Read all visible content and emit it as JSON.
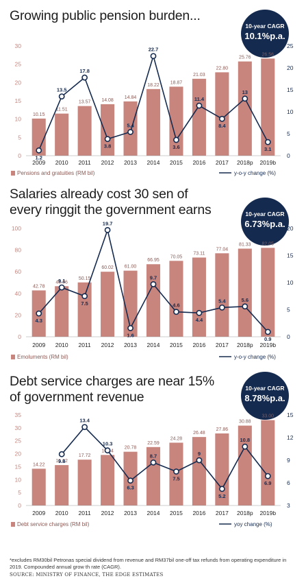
{
  "charts": [
    {
      "title_lines": [
        "Growing public pension burden..."
      ],
      "cagr_label": "10-year CAGR",
      "cagr_value": "10.1%p.a."
    },
    {
      "title_lines": [
        "Salaries already cost 30 sen of",
        "every ringgit the government earns"
      ],
      "cagr_label": "10-year CAGR",
      "cagr_value": "6.73%p.a."
    },
    {
      "title_lines": [
        "Debt service charges are near 15%",
        "of government revenue"
      ],
      "cagr_label": "10-year CAGR",
      "cagr_value": "8.78%p.a."
    }
  ],
  "chart_data": [
    {
      "type": "bar",
      "categories": [
        "2009",
        "2010",
        "2011",
        "2012",
        "2013",
        "2014",
        "2015",
        "2016",
        "2017",
        "2018p",
        "2019b"
      ],
      "series": [
        {
          "name": "Pensions and gratuities (RM bil)",
          "type": "bar",
          "axis": "left",
          "values": [
            10.15,
            11.51,
            13.57,
            14.08,
            14.84,
            18.22,
            18.87,
            21.03,
            22.8,
            25.76,
            26.56
          ],
          "labels": [
            "10.15",
            "11.51",
            "13.57",
            "14.08",
            "14.84",
            "18.22",
            "18.87",
            "21.03",
            "22.80",
            "25.76",
            "26.56"
          ]
        },
        {
          "name": "y-o-y change (%)",
          "type": "line",
          "axis": "right",
          "values": [
            1.2,
            13.5,
            17.8,
            3.8,
            5.4,
            22.7,
            3.6,
            11.4,
            8.4,
            13,
            3.1
          ],
          "labels": [
            "1.2",
            "13.5",
            "17.8",
            "3.8",
            "5.4",
            "22.7",
            "3.6",
            "11.4",
            "8.4",
            "13",
            "3.1"
          ]
        }
      ],
      "ylim": [
        0,
        30
      ],
      "yticks": [
        0,
        5,
        10,
        15,
        20,
        25,
        30
      ],
      "y2lim": [
        0,
        25
      ],
      "y2ticks": [
        0,
        5,
        10,
        15,
        20,
        25
      ],
      "colors": {
        "bar": "#c8857e",
        "line": "#152a4f"
      }
    },
    {
      "type": "bar",
      "categories": [
        "2009",
        "2010",
        "2011",
        "2012",
        "2013",
        "2014",
        "2015",
        "2016",
        "2017",
        "2018p",
        "2019b"
      ],
      "series": [
        {
          "name": "Emoluments (RM bil)",
          "type": "bar",
          "axis": "left",
          "values": [
            42.78,
            46.66,
            50.15,
            60.02,
            61.0,
            66.95,
            70.05,
            73.11,
            77.04,
            81.33,
            82.05
          ],
          "labels": [
            "42.78",
            "46.66",
            "50.15",
            "60.02",
            "61.00",
            "66.95",
            "70.05",
            "73.11",
            "77.04",
            "81.33",
            "82.05"
          ]
        },
        {
          "name": "y-o-y change (%)",
          "type": "line",
          "axis": "right",
          "values": [
            4.3,
            9.1,
            7.5,
            19.7,
            1.6,
            9.7,
            4.6,
            4.4,
            5.4,
            5.6,
            0.9
          ],
          "labels": [
            "4.3",
            "9.1",
            "7.5",
            "19.7",
            "1.6",
            "9.7",
            "4.6",
            "4.4",
            "5.4",
            "5.6",
            "0.9"
          ]
        }
      ],
      "ylim": [
        0,
        100
      ],
      "yticks": [
        0,
        20,
        40,
        60,
        80,
        100
      ],
      "y2lim": [
        0,
        20
      ],
      "y2ticks": [
        0,
        5,
        10,
        15,
        20
      ],
      "colors": {
        "bar": "#c8857e",
        "line": "#152a4f"
      }
    },
    {
      "type": "bar",
      "categories": [
        "2009",
        "2010",
        "2011",
        "2012",
        "2013",
        "2014",
        "2015",
        "2016",
        "2017",
        "2018p",
        "2019b"
      ],
      "series": [
        {
          "name": "Debt service charges (RM bil)",
          "type": "bar",
          "axis": "left",
          "values": [
            14.22,
            15.62,
            17.72,
            19.54,
            20.78,
            22.59,
            24.28,
            26.48,
            27.86,
            30.88,
            33.0
          ],
          "labels": [
            "14.22",
            "15.62",
            "17.72",
            "19.54",
            "20.78",
            "22.59",
            "24.28",
            "26.48",
            "27.86",
            "30.88",
            "33.00"
          ]
        },
        {
          "name": "yoy change (%)",
          "type": "line",
          "axis": "right",
          "values": [
            null,
            9.8,
            13.4,
            10.3,
            6.3,
            8.7,
            7.5,
            9,
            5.2,
            10.8,
            6.9
          ],
          "labels": [
            "",
            "9.8",
            "13.4",
            "10.3",
            "6.3",
            "8.7",
            "7.5",
            "9",
            "5.2",
            "10.8",
            "6.9"
          ]
        }
      ],
      "ylim": [
        0,
        35
      ],
      "yticks": [
        0,
        5,
        10,
        15,
        20,
        25,
        30,
        35
      ],
      "y2lim": [
        3,
        15
      ],
      "y2ticks": [
        3,
        6,
        9,
        12,
        15
      ],
      "colors": {
        "bar": "#c8857e",
        "line": "#152a4f"
      }
    }
  ],
  "footnote": "*excludes RM30bil Petronas special dividend from revenue and RM37bil one-off tax refunds from operating expenditure in 2019. Compounded annual grow th rate (CAGR).",
  "source": "SOURCE: MINISTRY OF FINANCE, THE EDGE ESTIMATES"
}
